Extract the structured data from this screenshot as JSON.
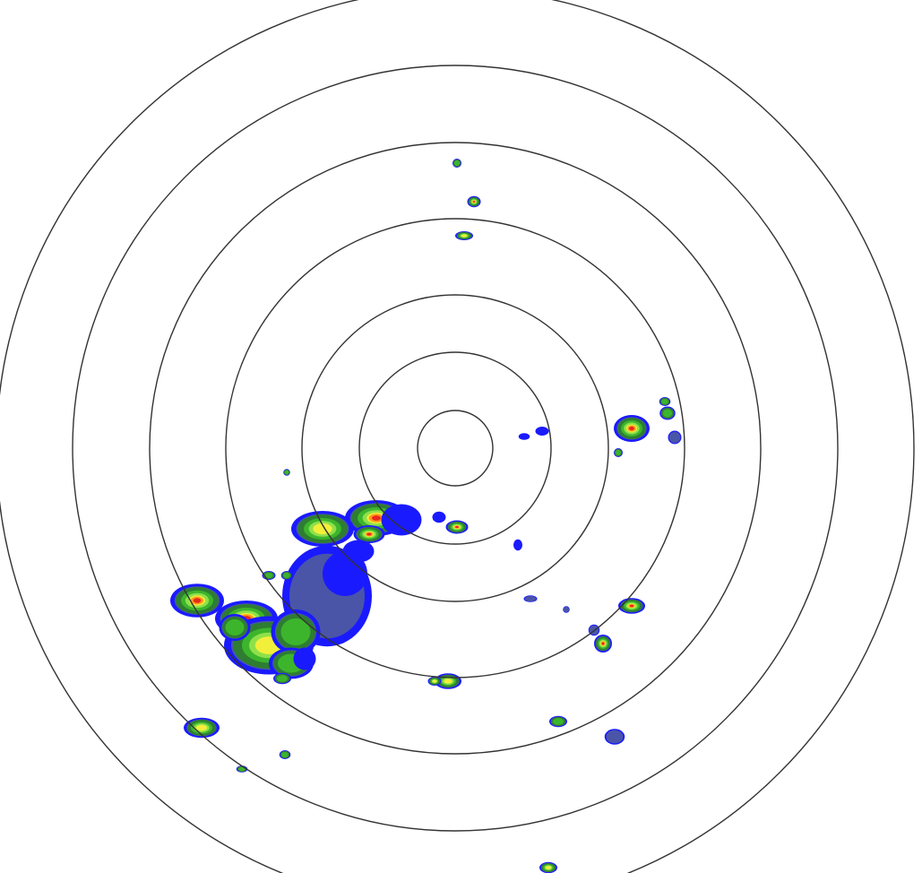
{
  "radar": {
    "ring_color": "#333333",
    "background": "#ffffff",
    "reflectivity_colors": {
      "cyan": "#33e0ff",
      "blue": "#1a1aff",
      "slate": "#4a55a8",
      "dark_green": "#2e7d32",
      "green": "#3cb52c",
      "light_green": "#8ee04a",
      "yellow": "#f2ef3a",
      "orange": "#ff9a1a",
      "red": "#e8281e"
    }
  }
}
